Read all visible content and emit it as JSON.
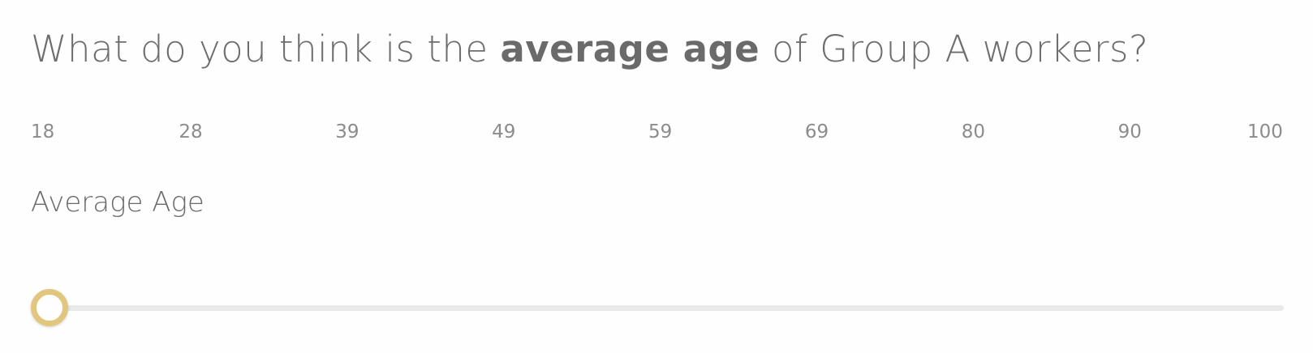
{
  "question": {
    "prefix": "What do you think is the ",
    "emphasis": "average age",
    "suffix": " of Group A workers?"
  },
  "scale": {
    "ticks": [
      "18",
      "28",
      "39",
      "49",
      "59",
      "69",
      "80",
      "90",
      "100"
    ]
  },
  "slider": {
    "label": "Average Age",
    "min": 18,
    "max": 100,
    "value": 18,
    "thumb_color": "#e3c67e",
    "track_color": "#e9e9e9"
  }
}
